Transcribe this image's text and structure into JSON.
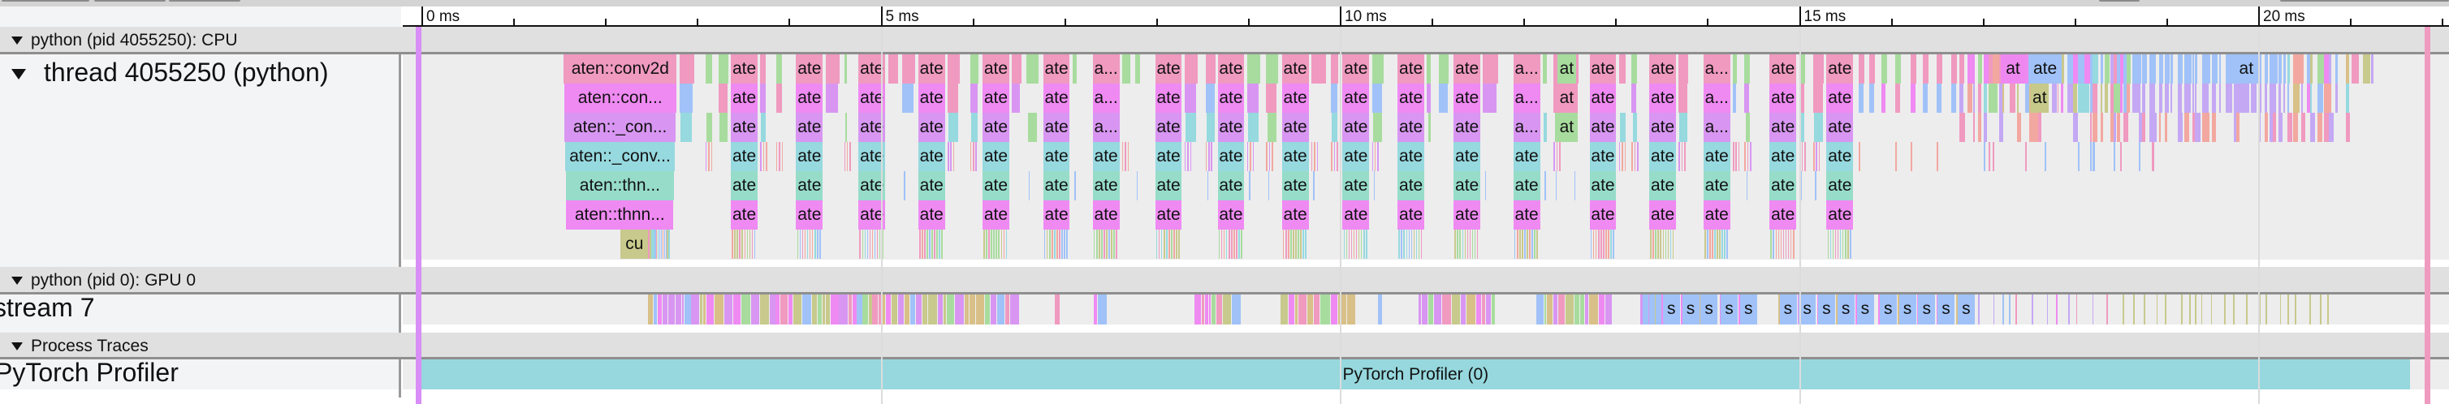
{
  "ruler": {
    "labels": [
      {
        "ms": 0,
        "label": "0 ms"
      },
      {
        "ms": 5,
        "label": "5 ms"
      },
      {
        "ms": 10,
        "label": "10 ms"
      },
      {
        "ms": 15,
        "label": "15 ms"
      },
      {
        "ms": 20,
        "label": "20 ms"
      }
    ],
    "minor_step_ms": 1
  },
  "cpu_process": {
    "title": "python (pid 4055250): CPU",
    "thread": {
      "title": "thread 4055250 (python)",
      "first_call": {
        "start_ms": 1.55,
        "dur_ms": 1.23,
        "labels": [
          "aten::conv2d",
          "aten::con...",
          "aten::_con...",
          "aten::_conv...",
          "aten::thn...",
          "aten::thnn..."
        ],
        "kernel": {
          "label": "cu",
          "start_ms": 2.17,
          "dur_ms": 0.3
        }
      },
      "call_columns": [
        {
          "start_ms": 3.37,
          "top": "ate"
        },
        {
          "start_ms": 4.08,
          "top": "ate"
        },
        {
          "start_ms": 4.76,
          "top": "ate"
        },
        {
          "start_ms": 5.41,
          "top": "ate"
        },
        {
          "start_ms": 6.11,
          "top": "ate"
        },
        {
          "start_ms": 6.77,
          "top": "ate"
        },
        {
          "start_ms": 7.31,
          "top": "a..."
        },
        {
          "start_ms": 7.99,
          "top": "ate"
        },
        {
          "start_ms": 8.67,
          "top": "ate"
        },
        {
          "start_ms": 9.37,
          "top": "ate"
        },
        {
          "start_ms": 10.03,
          "top": "ate"
        },
        {
          "start_ms": 10.63,
          "top": "ate"
        },
        {
          "start_ms": 11.24,
          "top": "ate"
        },
        {
          "start_ms": 11.89,
          "top": "a..."
        },
        {
          "start_ms": 12.72,
          "top": "ate"
        },
        {
          "start_ms": 13.37,
          "top": "ate"
        },
        {
          "start_ms": 13.96,
          "top": "a..."
        },
        {
          "start_ms": 14.68,
          "top": "ate"
        },
        {
          "start_ms": 15.3,
          "top": "ate"
        }
      ],
      "short_column": {
        "start_ms": 12.37,
        "label": "at"
      },
      "column_dur_ms": 0.29,
      "late_slices": [
        {
          "row": 0,
          "start_ms": 17.2,
          "dur_ms": 0.26,
          "label": "at",
          "color": "#ee88f0"
        },
        {
          "row": 0,
          "start_ms": 17.5,
          "dur_ms": 0.36,
          "label": "ate",
          "color": "#a0c2f8"
        },
        {
          "row": 1,
          "start_ms": 17.52,
          "dur_ms": 0.2,
          "label": "at",
          "color": "#c6c98a"
        },
        {
          "row": 0,
          "start_ms": 19.75,
          "dur_ms": 0.24,
          "label": "at",
          "color": "#a0c2f8"
        }
      ]
    }
  },
  "gpu_process": {
    "title": "python (pid 0): GPU 0",
    "stream": {
      "title": "stream 7",
      "dense_start_ms": 2.47,
      "dense_end_ms": 13.5,
      "s_kernels": [
        13.61,
        13.82,
        14.02,
        14.24,
        14.45,
        14.88,
        15.09,
        15.3,
        15.51,
        15.72,
        15.97,
        16.18,
        16.39,
        16.6,
        16.82
      ],
      "s_label": "s",
      "sparse_end_ms": 20.8
    }
  },
  "process_traces": {
    "title": "Process Traces",
    "track": {
      "title": "PyTorch Profiler",
      "slice": {
        "label": "PyTorch Profiler (0)",
        "start_ms": 0,
        "end_ms": 21.65,
        "color": "#96d8de"
      }
    }
  },
  "markers": {
    "start_marker": {
      "ms": -0.03,
      "color": "#d88ef6"
    },
    "end_marker": {
      "ms": 21.85,
      "color": "#f09ac0"
    }
  },
  "colors": {
    "pink": "#f09ac0",
    "magenta": "#ef8af2",
    "purple": "#d896f2",
    "cyan": "#96d9df",
    "teal": "#96dcc9",
    "green": "#a8dc9e",
    "olive": "#c8c98c",
    "blue": "#a0c2f8",
    "salmon": "#f2a8a0",
    "tan": "#d8c088",
    "lavender": "#c4a8f4"
  }
}
